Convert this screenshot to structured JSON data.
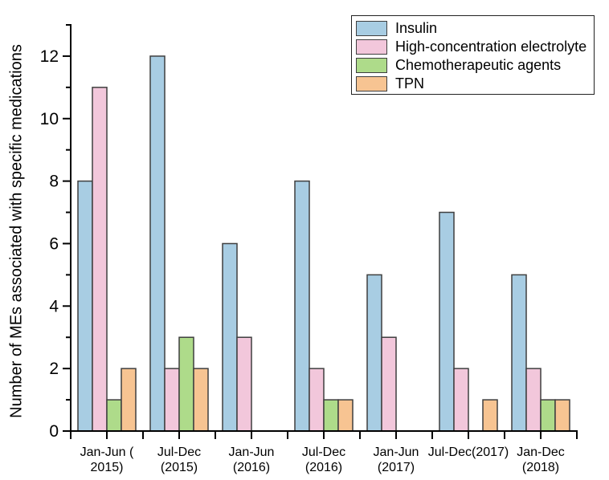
{
  "figure": {
    "background_color": "#ffffff",
    "text_color": "#000000",
    "axis_color": "#000000"
  },
  "chart_data": {
    "type": "bar",
    "title": "",
    "xlabel": "",
    "ylabel": "Number of MEs associated with specific medications",
    "ylim": [
      0,
      13
    ],
    "ytick_major": [
      0,
      2,
      4,
      6,
      8,
      10,
      12
    ],
    "ytick_minor": [
      1,
      3,
      5,
      7,
      9,
      11,
      13
    ],
    "grid": false,
    "legend_position": "top-right",
    "bar_border_color": "#3f3f3f",
    "categories": [
      "Jan-Jun (2015)",
      "Jul-Dec (2015)",
      "Jan-Jun (2016)",
      "Jul-Dec (2016)",
      "Jan-Jun (2017)",
      "Jul-Dec(2017)",
      "Jan-Dec (2018)"
    ],
    "category_label_lines": [
      [
        "Jan-Jun (",
        "2015)"
      ],
      [
        "Jul-Dec",
        "(2015)"
      ],
      [
        "Jan-Jun",
        "(2016)"
      ],
      [
        "Jul-Dec",
        "(2016)"
      ],
      [
        "Jan-Jun",
        "(2017)"
      ],
      [
        "Jul-Dec(2017)"
      ],
      [
        "Jan-Dec",
        "(2018)"
      ]
    ],
    "series": [
      {
        "name": "Insulin",
        "slug": "insulin",
        "color": "#a8cde3",
        "values": [
          8,
          12,
          6,
          8,
          5,
          7,
          5
        ]
      },
      {
        "name": "High-concentration electrolyte",
        "slug": "high-concentration-electrolyte",
        "color": "#f2c7db",
        "values": [
          11,
          2,
          3,
          2,
          3,
          2,
          2
        ]
      },
      {
        "name": "Chemotherapeutic agents",
        "slug": "chemotherapeutic-agents",
        "color": "#aedb8a",
        "values": [
          1,
          3,
          0,
          1,
          0,
          0,
          1
        ]
      },
      {
        "name": "TPN",
        "slug": "tpn",
        "color": "#f7c492",
        "values": [
          2,
          2,
          0,
          1,
          0,
          1,
          1
        ]
      }
    ]
  }
}
